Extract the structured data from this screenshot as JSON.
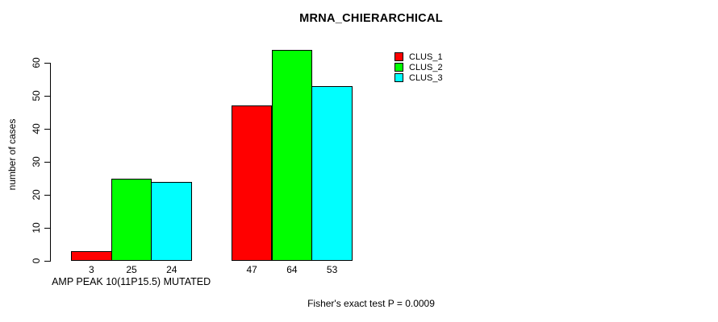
{
  "chart_data": {
    "type": "bar",
    "title": "MRNA_CHIERARCHICAL",
    "ylabel": "number of cases",
    "ylim": [
      0,
      60
    ],
    "yticks": [
      0,
      10,
      20,
      30,
      40,
      50,
      60
    ],
    "grid": false,
    "legend_position": "top-right",
    "series": [
      {
        "name": "CLUS_1",
        "color": "#ff0000"
      },
      {
        "name": "CLUS_2",
        "color": "#00ff00"
      },
      {
        "name": "CLUS_3",
        "color": "#00ffff"
      }
    ],
    "groups": [
      {
        "label": "AMP PEAK 10(11P15.5) MUTATED",
        "values": [
          3,
          25,
          24
        ]
      },
      {
        "label": "",
        "values": [
          47,
          64,
          53
        ]
      }
    ],
    "bar_value_labels": [
      3,
      25,
      24,
      47,
      64,
      53
    ],
    "annotation": "Fisher's exact test P = 0.0009"
  }
}
